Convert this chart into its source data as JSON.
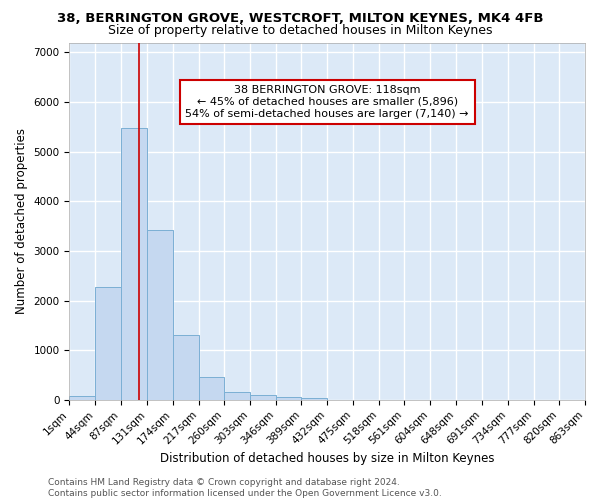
{
  "title": "38, BERRINGTON GROVE, WESTCROFT, MILTON KEYNES, MK4 4FB",
  "subtitle": "Size of property relative to detached houses in Milton Keynes",
  "xlabel": "Distribution of detached houses by size in Milton Keynes",
  "ylabel": "Number of detached properties",
  "bin_edges": [
    1,
    44,
    87,
    131,
    174,
    217,
    260,
    303,
    346,
    389,
    432,
    475,
    518,
    561,
    604,
    648,
    691,
    734,
    777,
    820,
    863
  ],
  "bar_heights": [
    75,
    2270,
    5480,
    3430,
    1310,
    460,
    155,
    90,
    60,
    35,
    0,
    0,
    0,
    0,
    0,
    0,
    0,
    0,
    0,
    0
  ],
  "bar_color": "#c5d8f0",
  "bar_edge_color": "#7bafd4",
  "property_size": 118,
  "vline_color": "#cc0000",
  "ylim": [
    0,
    7200
  ],
  "yticks": [
    0,
    1000,
    2000,
    3000,
    4000,
    5000,
    6000,
    7000
  ],
  "annotation_text": "38 BERRINGTON GROVE: 118sqm\n← 45% of detached houses are smaller (5,896)\n54% of semi-detached houses are larger (7,140) →",
  "annotation_box_color": "#ffffff",
  "annotation_box_edge": "#cc0000",
  "footer_line1": "Contains HM Land Registry data © Crown copyright and database right 2024.",
  "footer_line2": "Contains public sector information licensed under the Open Government Licence v3.0.",
  "bg_color": "#dce9f7",
  "fig_bg_color": "#ffffff",
  "grid_color": "#ffffff",
  "title_fontsize": 9.5,
  "subtitle_fontsize": 9,
  "axis_label_fontsize": 8.5,
  "tick_fontsize": 7.5,
  "annotation_fontsize": 8,
  "footer_fontsize": 6.5
}
